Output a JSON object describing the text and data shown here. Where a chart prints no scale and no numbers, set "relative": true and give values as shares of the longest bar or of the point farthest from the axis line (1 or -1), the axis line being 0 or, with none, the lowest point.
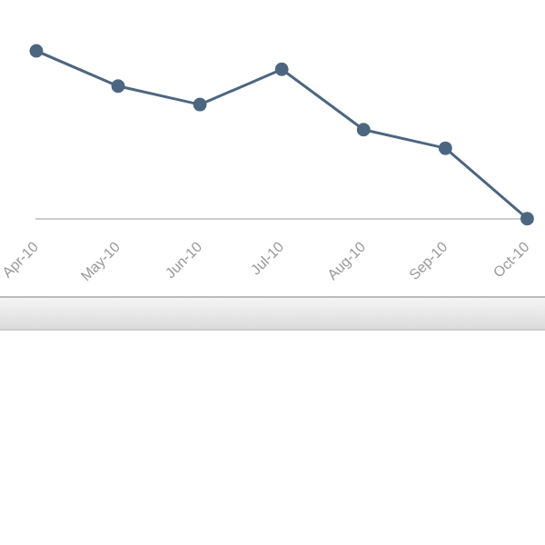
{
  "chart_data": {
    "type": "line",
    "relative": true,
    "categories": [
      "Apr-10",
      "May-10",
      "Jun-10",
      "Jul-10",
      "Aug-10",
      "Sep-10",
      "Oct-10"
    ],
    "series": [
      {
        "color": "#4d6680",
        "values": [
          1,
          0.79,
          0.68,
          0.89,
          0.53,
          0.42,
          0
        ]
      }
    ],
    "marker": "circle",
    "line_style": "solid",
    "grid": false,
    "legend": false,
    "tick_labels": "x"
  }
}
